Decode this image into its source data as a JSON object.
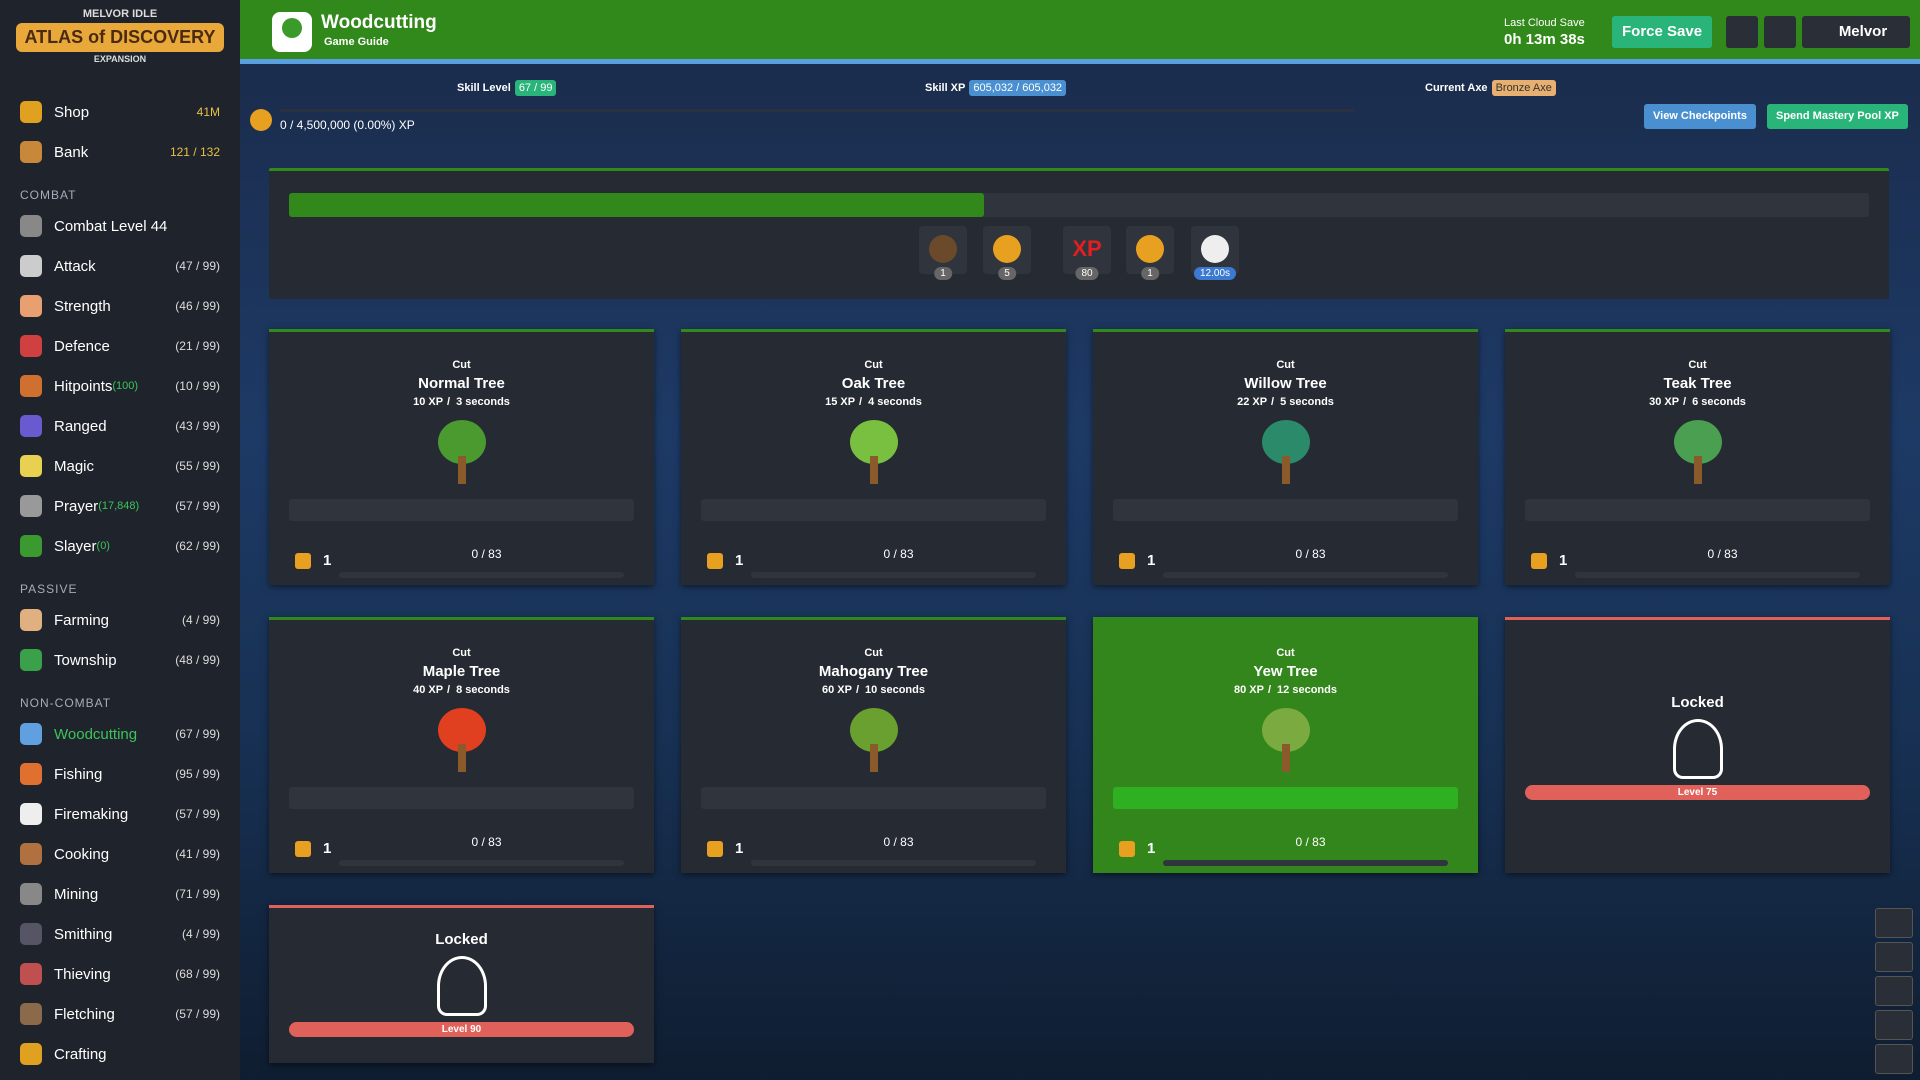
{
  "sidebar": {
    "logo": {
      "top": "MELVOR IDLE",
      "title": "ATLAS of DISCOVERY",
      "sub": "EXPANSION"
    },
    "top_items": [
      {
        "name": "Shop",
        "value": "41M"
      },
      {
        "name": "Bank",
        "value": "121 / 132"
      }
    ],
    "sections": [
      {
        "title": "COMBAT",
        "items": [
          {
            "name": "Combat Level 44"
          },
          {
            "name": "Attack",
            "level": "(47 / 99)"
          },
          {
            "name": "Strength",
            "level": "(46 / 99)"
          },
          {
            "name": "Defence",
            "level": "(21 / 99)"
          },
          {
            "name": "Hitpoints",
            "extra": "(100)",
            "level": "(10 / 99)"
          },
          {
            "name": "Ranged",
            "level": "(43 / 99)"
          },
          {
            "name": "Magic",
            "level": "(55 / 99)"
          },
          {
            "name": "Prayer",
            "extra": "(17,848)",
            "level": "(57 / 99)"
          },
          {
            "name": "Slayer",
            "extra": "(0)",
            "level": "(62 / 99)"
          }
        ]
      },
      {
        "title": "PASSIVE",
        "items": [
          {
            "name": "Farming",
            "level": "(4 / 99)"
          },
          {
            "name": "Township",
            "level": "(48 / 99)"
          }
        ]
      },
      {
        "title": "NON-COMBAT",
        "items": [
          {
            "name": "Woodcutting",
            "level": "(67 / 99)",
            "active": true
          },
          {
            "name": "Fishing",
            "level": "(95 / 99)"
          },
          {
            "name": "Firemaking",
            "level": "(57 / 99)"
          },
          {
            "name": "Cooking",
            "level": "(41 / 99)"
          },
          {
            "name": "Mining",
            "level": "(71 / 99)"
          },
          {
            "name": "Smithing",
            "level": "(4 / 99)"
          },
          {
            "name": "Thieving",
            "level": "(68 / 99)"
          },
          {
            "name": "Fletching",
            "level": "(57 / 99)"
          },
          {
            "name": "Crafting"
          }
        ]
      }
    ]
  },
  "header": {
    "title": "Woodcutting",
    "guide": "Game Guide",
    "cloud_label": "Last Cloud Save",
    "cloud_time": "0h 13m 38s",
    "force_save": "Force Save",
    "user": "Melvor"
  },
  "stats": {
    "skill_level_label": "Skill Level",
    "skill_level": "67 / 99",
    "skill_xp_label": "Skill XP",
    "skill_xp": "605,032 / 605,032",
    "axe_label": "Current Axe",
    "axe": "Bronze Axe",
    "pool": "0 / 4,500,000 (0.00%) XP",
    "view_checkpoints": "View Checkpoints",
    "spend_pool": "Spend Mastery Pool XP"
  },
  "progress": {
    "percent": 44,
    "xp_icon": "XP",
    "badges": [
      1,
      5,
      80,
      1,
      "12.00s"
    ]
  },
  "trees": [
    {
      "action": "Cut",
      "name": "Normal Tree",
      "xp": "10 XP",
      "time": "3 seconds",
      "mastery": 1,
      "mastery_xp": "0 / 83"
    },
    {
      "action": "Cut",
      "name": "Oak Tree",
      "xp": "15 XP",
      "time": "4 seconds",
      "mastery": 1,
      "mastery_xp": "0 / 83"
    },
    {
      "action": "Cut",
      "name": "Willow Tree",
      "xp": "22 XP",
      "time": "5 seconds",
      "mastery": 1,
      "mastery_xp": "0 / 83"
    },
    {
      "action": "Cut",
      "name": "Teak Tree",
      "xp": "30 XP",
      "time": "6 seconds",
      "mastery": 1,
      "mastery_xp": "0 / 83"
    },
    {
      "action": "Cut",
      "name": "Maple Tree",
      "xp": "40 XP",
      "time": "8 seconds",
      "mastery": 1,
      "mastery_xp": "0 / 83"
    },
    {
      "action": "Cut",
      "name": "Mahogany Tree",
      "xp": "60 XP",
      "time": "10 seconds",
      "mastery": 1,
      "mastery_xp": "0 / 83"
    },
    {
      "action": "Cut",
      "name": "Yew Tree",
      "xp": "80 XP",
      "time": "12 seconds",
      "mastery": 1,
      "mastery_xp": "0 / 83",
      "active": true
    }
  ],
  "locked": [
    {
      "label": "Locked",
      "level": "Level 75"
    },
    {
      "label": "Locked",
      "level": "Level 90"
    }
  ]
}
